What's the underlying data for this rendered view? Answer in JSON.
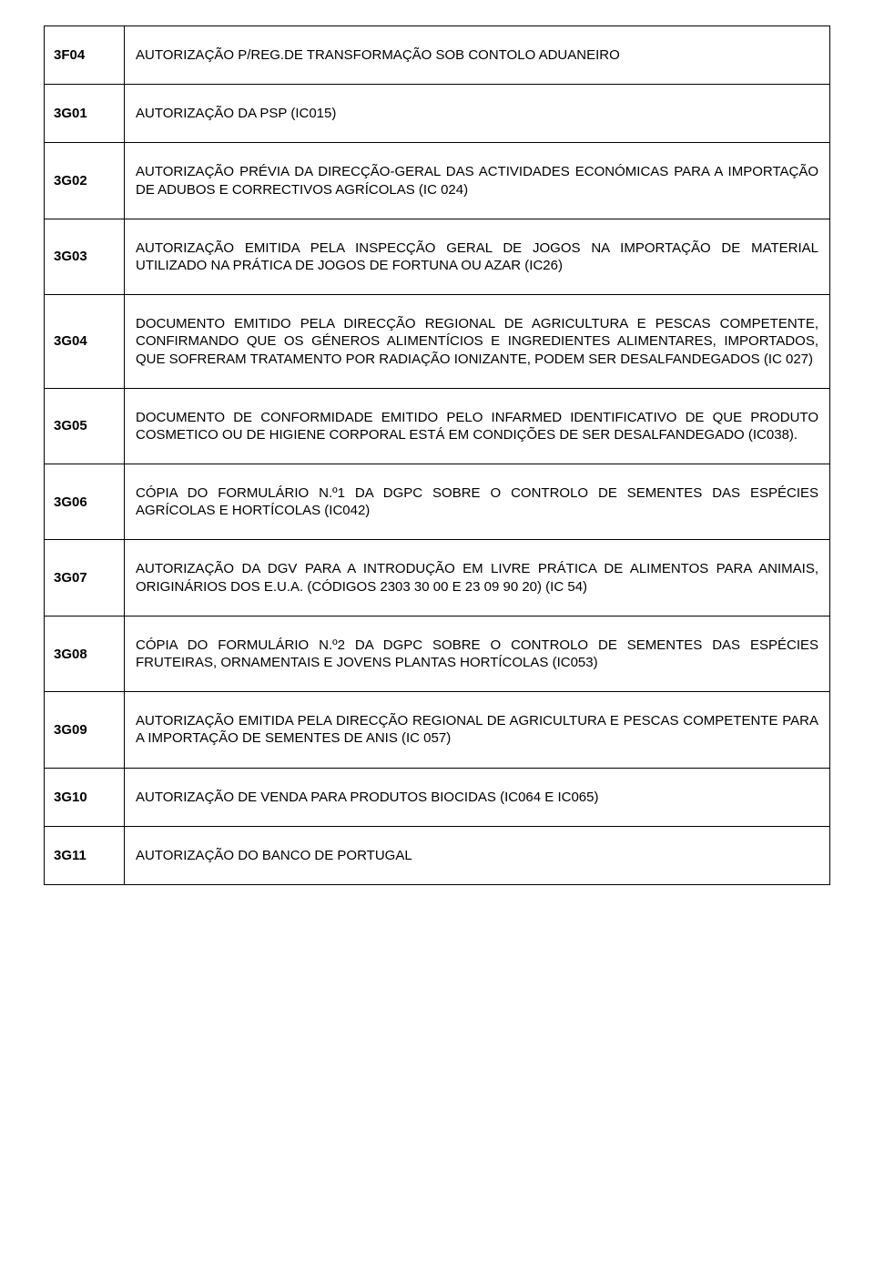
{
  "rows": [
    {
      "code": "3F04",
      "desc": "AUTORIZAÇÃO P/REG.DE TRANSFORMAÇÃO SOB CONTOLO ADUANEIRO",
      "justify": false
    },
    {
      "code": "3G01",
      "desc": "AUTORIZAÇÃO DA PSP (IC015)",
      "justify": false
    },
    {
      "code": "3G02",
      "desc": "AUTORIZAÇÃO PRÉVIA DA DIRECÇÃO-GERAL DAS ACTIVIDADES ECONÓMICAS PARA A IMPORTAÇÃO DE ADUBOS E CORRECTIVOS AGRÍCOLAS (IC 024)",
      "justify": true
    },
    {
      "code": "3G03",
      "desc": "AUTORIZAÇÃO EMITIDA PELA INSPECÇÃO GERAL DE JOGOS NA IMPORTAÇÃO DE MATERIAL UTILIZADO NA PRÁTICA DE JOGOS DE FORTUNA OU AZAR (IC26)",
      "justify": true
    },
    {
      "code": "3G04",
      "desc": "DOCUMENTO EMITIDO PELA DIRECÇÃO REGIONAL DE AGRICULTURA E PESCAS COMPETENTE, CONFIRMANDO QUE OS GÉNEROS ALIMENTÍCIOS E INGREDIENTES ALIMENTARES, IMPORTADOS, QUE SOFRERAM TRATAMENTO POR RADIAÇÃO IONIZANTE, PODEM SER DESALFANDEGADOS (IC 027)",
      "justify": true
    },
    {
      "code": "3G05",
      "desc": "DOCUMENTO DE CONFORMIDADE EMITIDO PELO INFARMED IDENTIFICATIVO DE QUE PRODUTO COSMETICO OU DE HIGIENE CORPORAL ESTÁ EM CONDIÇÕES DE SER DESALFANDEGADO (IC038).",
      "justify": true
    },
    {
      "code": "3G06",
      "desc": "CÓPIA DO FORMULÁRIO N.º1 DA DGPC SOBRE O CONTROLO DE SEMENTES DAS ESPÉCIES AGRÍCOLAS E HORTÍCOLAS (IC042)",
      "justify": true
    },
    {
      "code": "3G07",
      "desc": "AUTORIZAÇÃO DA DGV PARA A INTRODUÇÃO EM LIVRE PRÁTICA DE ALIMENTOS PARA ANIMAIS, ORIGINÁRIOS DOS E.U.A. (CÓDIGOS 2303 30 00 E 23 09 90 20) (IC 54)",
      "justify": true
    },
    {
      "code": "3G08",
      "desc": "CÓPIA DO FORMULÁRIO N.º2 DA DGPC SOBRE O CONTROLO DE SEMENTES DAS ESPÉCIES FRUTEIRAS, ORNAMENTAIS E JOVENS PLANTAS HORTÍCOLAS (IC053)",
      "justify": true
    },
    {
      "code": "3G09",
      "desc": "AUTORIZAÇÃO EMITIDA PELA DIRECÇÃO REGIONAL DE AGRICULTURA E PESCAS COMPETENTE PARA A IMPORTAÇÃO DE SEMENTES DE ANIS (IC 057)",
      "justify": true
    },
    {
      "code": "3G10",
      "desc": "AUTORIZAÇÃO DE VENDA PARA PRODUTOS BIOCIDAS (IC064 E IC065)",
      "justify": false
    },
    {
      "code": "3G11",
      "desc": "AUTORIZAÇÃO DO BANCO DE PORTUGAL",
      "justify": false
    }
  ]
}
